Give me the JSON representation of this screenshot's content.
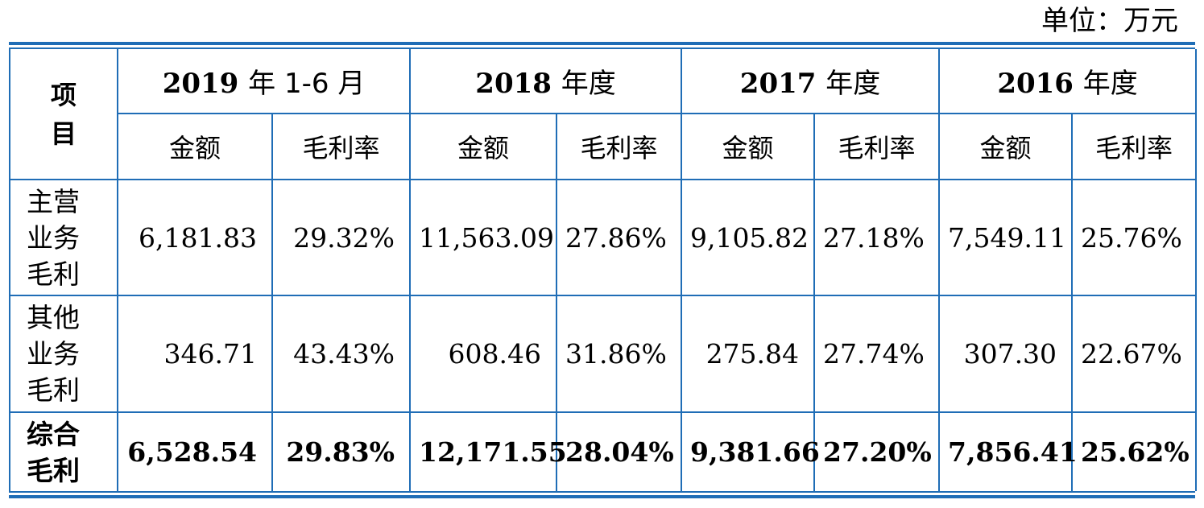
{
  "unit_label": "单位：万元",
  "header": {
    "item_label": [
      "项",
      "目"
    ],
    "periods": [
      {
        "year": "2019",
        "suffix": "年 1-6 月",
        "amount_label": "金额",
        "margin_label": "毛利率"
      },
      {
        "year": "2018",
        "suffix": "年度",
        "amount_label": "金额",
        "margin_label": "毛利率"
      },
      {
        "year": "2017",
        "suffix": "年度",
        "amount_label": "金额",
        "margin_label": "毛利率"
      },
      {
        "year": "2016",
        "suffix": "年度",
        "amount_label": "金额",
        "margin_label": "毛利率"
      }
    ]
  },
  "rows": [
    {
      "label": [
        "主营",
        "业务",
        "毛利"
      ],
      "bold": false,
      "cells": [
        {
          "amount": "6,181.83",
          "margin": "29.32%"
        },
        {
          "amount": "11,563.09",
          "margin": "27.86%"
        },
        {
          "amount": "9,105.82",
          "margin": "27.18%"
        },
        {
          "amount": "7,549.11",
          "margin": "25.76%"
        }
      ]
    },
    {
      "label": [
        "其他",
        "业务",
        "毛利"
      ],
      "bold": false,
      "cells": [
        {
          "amount": "346.71",
          "margin": "43.43%"
        },
        {
          "amount": "608.46",
          "margin": "31.86%"
        },
        {
          "amount": "275.84",
          "margin": "27.74%"
        },
        {
          "amount": "307.30",
          "margin": "22.67%"
        }
      ]
    },
    {
      "label": [
        "综合",
        "毛利"
      ],
      "bold": true,
      "cells": [
        {
          "amount": "6,528.54",
          "margin": "29.83%"
        },
        {
          "amount": "12,171.55",
          "margin": "28.04%"
        },
        {
          "amount": "9,381.66",
          "margin": "27.20%"
        },
        {
          "amount": "7,856.41",
          "margin": "25.62%"
        }
      ]
    }
  ],
  "colors": {
    "rule": "#1f6db6",
    "text": "#000000",
    "background": "#ffffff"
  }
}
